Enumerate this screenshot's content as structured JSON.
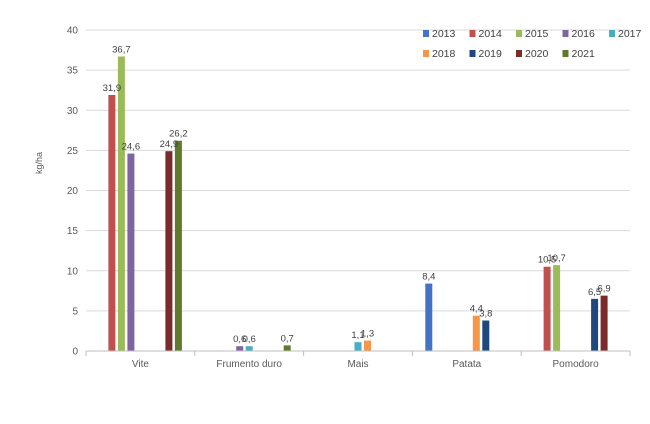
{
  "chart_data": {
    "type": "bar",
    "title": "",
    "xlabel": "",
    "ylabel": "kg/ha",
    "ylim": [
      0,
      40
    ],
    "yticks": [
      0,
      5,
      10,
      15,
      20,
      25,
      30,
      35,
      40
    ],
    "grid": true,
    "legend_position": "top-right",
    "categories": [
      "Vite",
      "Frumento duro",
      "Mais",
      "Patata",
      "Pomodoro"
    ],
    "series": [
      {
        "name": "2013",
        "color": "#4472C4",
        "values": [
          null,
          null,
          null,
          8.4,
          null
        ],
        "labels": [
          null,
          null,
          null,
          "8,4",
          null
        ]
      },
      {
        "name": "2014",
        "color": "#C0504D",
        "values": [
          31.9,
          null,
          null,
          null,
          10.5
        ],
        "labels": [
          "31,9",
          null,
          null,
          null,
          "10,5"
        ]
      },
      {
        "name": "2015",
        "color": "#9BBB59",
        "values": [
          36.7,
          null,
          null,
          null,
          10.7
        ],
        "labels": [
          "36,7",
          null,
          null,
          null,
          "10,7"
        ]
      },
      {
        "name": "2016",
        "color": "#8064A2",
        "values": [
          24.6,
          0.6,
          null,
          null,
          null
        ],
        "labels": [
          "24,6",
          "0,6",
          null,
          null,
          null
        ]
      },
      {
        "name": "2017",
        "color": "#4BACC6",
        "values": [
          null,
          0.6,
          1.1,
          null,
          null
        ],
        "labels": [
          null,
          "0,6",
          "1,1",
          null,
          null
        ]
      },
      {
        "name": "2018",
        "color": "#F79646",
        "values": [
          null,
          null,
          1.3,
          4.4,
          null
        ],
        "labels": [
          null,
          null,
          "1,3",
          "4,4",
          null
        ]
      },
      {
        "name": "2019",
        "color": "#1F497D",
        "values": [
          null,
          null,
          null,
          3.8,
          6.5
        ],
        "labels": [
          null,
          null,
          null,
          "3,8",
          "6,5"
        ]
      },
      {
        "name": "2020",
        "color": "#7B2C2A",
        "values": [
          24.9,
          null,
          null,
          null,
          6.9
        ],
        "labels": [
          "24,9",
          null,
          null,
          null,
          "6,9"
        ]
      },
      {
        "name": "2021",
        "color": "#5E7A2B",
        "values": [
          26.2,
          0.7,
          null,
          null,
          null
        ],
        "labels": [
          "26,2",
          "0,7",
          null,
          null,
          null
        ]
      }
    ]
  }
}
